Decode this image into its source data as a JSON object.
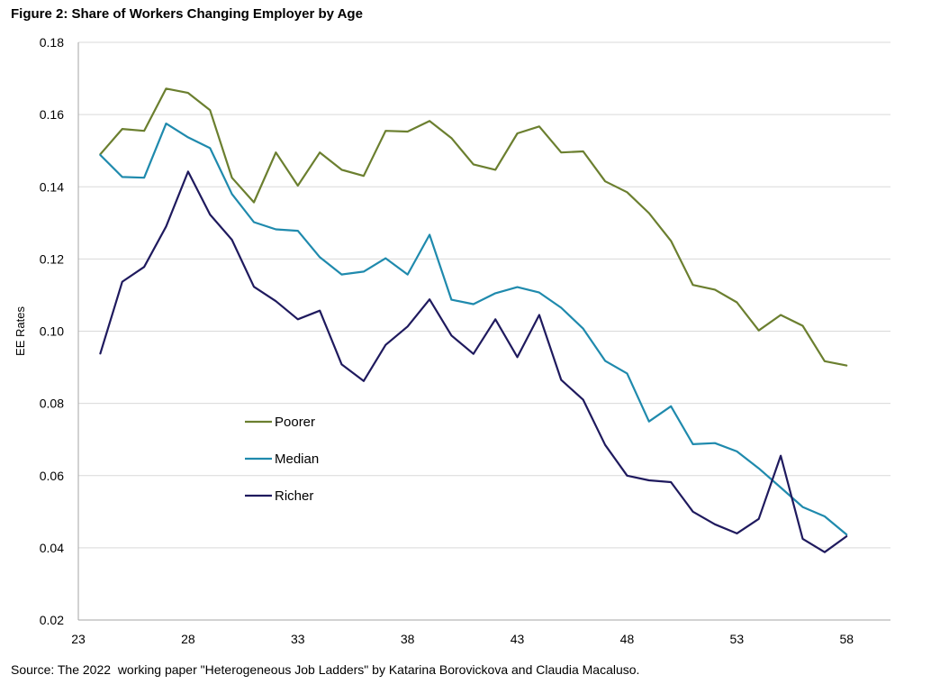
{
  "figure": {
    "title": "Figure 2: Share of Workers Changing Employer by Age",
    "source": "Source: The 2022  working paper \"Heterogeneous Job Ladders\" by Katarina Borovickova and Claudia Macaluso."
  },
  "chart_data": {
    "type": "line",
    "title": "Figure 2: Share of Workers Changing Employer by Age",
    "xlabel": "",
    "ylabel": "EE Rates",
    "xlim": [
      23,
      60
    ],
    "ylim": [
      0.02,
      0.18
    ],
    "xticks": [
      23,
      28,
      33,
      38,
      43,
      48,
      53,
      58
    ],
    "yticks": [
      0.02,
      0.04,
      0.06,
      0.08,
      0.1,
      0.12,
      0.14,
      0.16,
      0.18
    ],
    "ytick_labels": [
      "0.02",
      "0.04",
      "0.06",
      "0.08",
      "0.10",
      "0.12",
      "0.14",
      "0.16",
      "0.18"
    ],
    "grid": "horizontal",
    "legend_position": "inside-left",
    "x": [
      24,
      25,
      26,
      27,
      28,
      29,
      30,
      31,
      32,
      33,
      34,
      35,
      36,
      37,
      38,
      39,
      40,
      41,
      42,
      43,
      44,
      45,
      46,
      47,
      48,
      49,
      50,
      51,
      52,
      53,
      54,
      55,
      56,
      57,
      58
    ],
    "series": [
      {
        "name": "Poorer",
        "color": "#6b7f2f",
        "values": [
          0.149,
          0.156,
          0.1555,
          0.1672,
          0.166,
          0.1612,
          0.1425,
          0.1357,
          0.1495,
          0.1403,
          0.1495,
          0.1447,
          0.143,
          0.1555,
          0.1553,
          0.1582,
          0.1535,
          0.1462,
          0.1447,
          0.1548,
          0.1567,
          0.1495,
          0.1498,
          0.1415,
          0.1385,
          0.1327,
          0.125,
          0.1128,
          0.1115,
          0.108,
          0.1002,
          0.1045,
          0.1015,
          0.0917,
          0.0905
        ]
      },
      {
        "name": "Median",
        "color": "#1f8aad",
        "values": [
          0.1488,
          0.1427,
          0.1425,
          0.1575,
          0.1537,
          0.1507,
          0.138,
          0.1302,
          0.1282,
          0.1278,
          0.1205,
          0.1157,
          0.1165,
          0.1202,
          0.1157,
          0.1267,
          0.1087,
          0.1075,
          0.1105,
          0.1122,
          0.1107,
          0.1065,
          0.1007,
          0.0918,
          0.0883,
          0.075,
          0.0792,
          0.0687,
          0.069,
          0.0667,
          0.062,
          0.0567,
          0.0513,
          0.0487,
          0.0437
        ]
      },
      {
        "name": "Richer",
        "color": "#1f1a5e",
        "values": [
          0.0938,
          0.1137,
          0.1178,
          0.129,
          0.1442,
          0.1323,
          0.1253,
          0.1123,
          0.1083,
          0.1033,
          0.1057,
          0.0908,
          0.0862,
          0.0962,
          0.1013,
          0.1088,
          0.0988,
          0.0937,
          0.1033,
          0.0928,
          0.1045,
          0.0865,
          0.081,
          0.0685,
          0.06,
          0.0587,
          0.0582,
          0.05,
          0.0465,
          0.044,
          0.048,
          0.0655,
          0.0425,
          0.0388,
          0.0432
        ]
      }
    ]
  }
}
